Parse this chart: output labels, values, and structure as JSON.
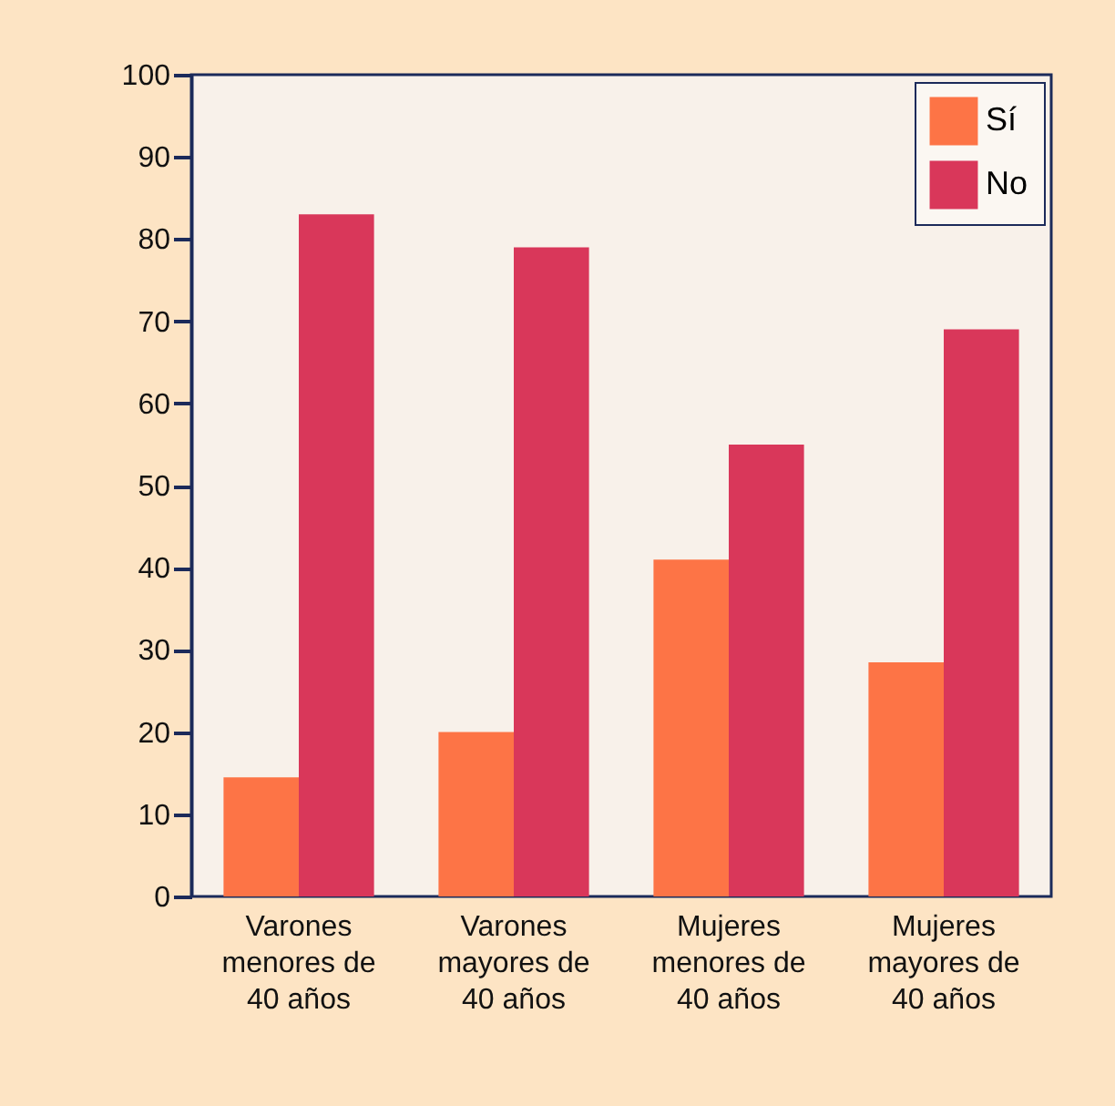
{
  "chart_data": {
    "type": "bar",
    "categories": [
      "Varones menores de 40 años",
      "Varones mayores de 40 años",
      "Mujeres menores de 40 años",
      "Mujeres mayores de 40 años"
    ],
    "series": [
      {
        "name": "Sí",
        "color": "#fd7446",
        "values": [
          14.5,
          20,
          41,
          28.5
        ]
      },
      {
        "name": "No",
        "color": "#d9375a",
        "values": [
          83,
          79,
          55,
          69
        ]
      }
    ],
    "ylim": [
      0,
      100
    ],
    "yticks": [
      0,
      10,
      20,
      30,
      40,
      50,
      60,
      70,
      80,
      90,
      100
    ],
    "grid": false,
    "legend": "top right"
  }
}
